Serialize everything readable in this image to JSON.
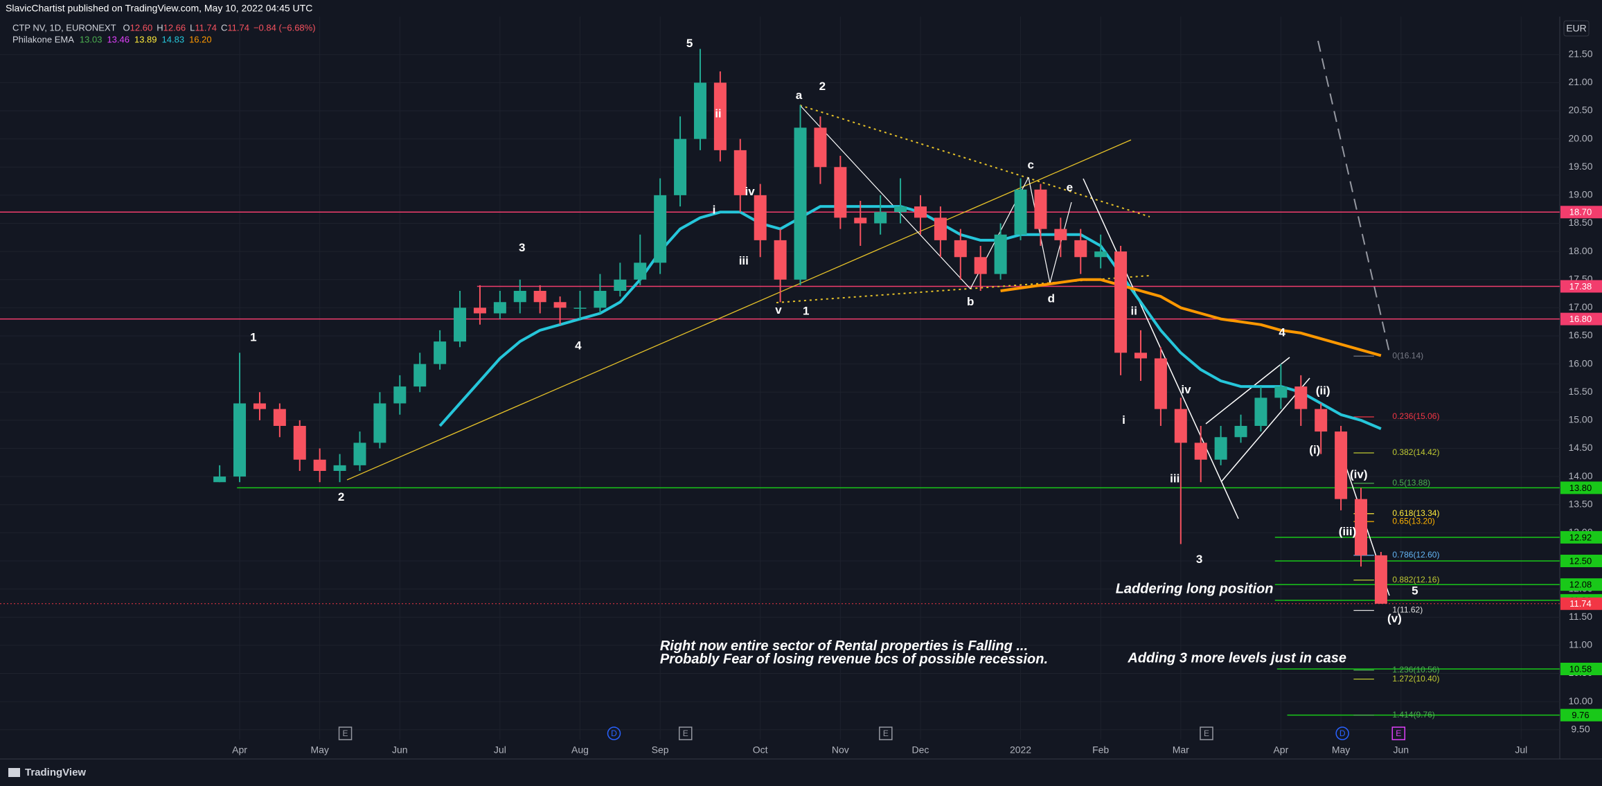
{
  "chart_data": {
    "type": "candlestick",
    "publisher": "SlavicChartist published on TradingView.com, May 10, 2022 04:45 UTC",
    "symbol": "CTP NV, 1D, EURONEXT",
    "ohlc": [
      {
        "key": "O",
        "label": "12.60"
      },
      {
        "key": "H",
        "label": "12.66"
      },
      {
        "key": "L",
        "label": "11.74"
      },
      {
        "key": "C",
        "label": "11.74"
      }
    ],
    "change": "−0.84 (−6.68%)",
    "indicator": "Philakone EMA",
    "indicator_values": [
      {
        "label": "13.03",
        "color": "#4caf50"
      },
      {
        "label": "13.46",
        "color": "#e040fb"
      },
      {
        "label": "13.89",
        "color": "#ffeb3b"
      },
      {
        "label": "14.83",
        "color": "#26c6da"
      },
      {
        "label": "16.20",
        "color": "#ff9800"
      }
    ],
    "currency": "EUR",
    "footer": "TradingView",
    "up_color": "#22ab94",
    "down_color": "#f7525f",
    "categories": [
      null,
      "Apr",
      null,
      null,
      null,
      "May",
      null,
      null,
      null,
      "Jun",
      null,
      null,
      null,
      null,
      "Jul",
      null,
      null,
      null,
      "Aug",
      null,
      null,
      null,
      "Sep",
      null,
      null,
      null,
      null,
      "Oct",
      null,
      null,
      null,
      "Nov",
      null,
      null,
      null,
      "Dec",
      null,
      null,
      null,
      null,
      "2022",
      null,
      null,
      null,
      "Feb",
      null,
      null,
      null,
      "Mar",
      null,
      null,
      null,
      null,
      "Apr",
      null,
      null,
      "May",
      null,
      null,
      "Jun",
      null,
      null,
      null,
      null,
      null,
      "Jul",
      null
    ],
    "open": [
      13.9,
      14.0,
      15.3,
      15.2,
      14.9,
      14.3,
      14.1,
      14.2,
      14.6,
      15.3,
      15.6,
      16.0,
      16.4,
      17.0,
      16.9,
      17.1,
      17.3,
      17.1,
      17.0,
      17.0,
      17.3,
      17.5,
      17.8,
      19.0,
      20.0,
      21.0,
      19.8,
      19.0,
      18.2,
      17.5,
      20.2,
      19.5,
      18.6,
      18.5,
      18.7,
      18.8,
      18.6,
      18.2,
      17.9,
      17.6,
      18.3,
      19.1,
      18.4,
      18.2,
      17.9,
      18.0,
      16.2,
      16.1,
      15.2,
      14.6,
      14.3,
      14.7,
      14.9,
      15.4,
      15.6,
      15.2,
      14.8,
      13.6,
      12.6,
      null,
      null,
      null,
      null,
      null,
      null,
      null,
      null
    ],
    "high": [
      14.2,
      16.2,
      15.5,
      15.3,
      15.0,
      14.5,
      14.4,
      14.8,
      15.5,
      15.8,
      16.2,
      16.6,
      17.3,
      17.4,
      17.3,
      17.5,
      17.4,
      17.2,
      17.3,
      17.6,
      17.8,
      18.3,
      19.3,
      20.4,
      21.6,
      21.2,
      20.0,
      19.2,
      18.4,
      20.6,
      20.4,
      19.7,
      18.9,
      19.0,
      19.3,
      19.0,
      18.8,
      18.4,
      18.1,
      18.5,
      19.3,
      19.2,
      18.6,
      18.4,
      18.3,
      18.1,
      16.6,
      16.3,
      15.4,
      14.9,
      14.9,
      15.1,
      15.6,
      16.0,
      15.8,
      15.3,
      14.9,
      13.8,
      12.66,
      null,
      null,
      null,
      null,
      null,
      null,
      null,
      null
    ],
    "low": [
      13.9,
      13.9,
      15.0,
      14.7,
      14.1,
      13.9,
      13.9,
      14.1,
      14.5,
      15.1,
      15.5,
      15.9,
      16.3,
      16.7,
      16.8,
      16.9,
      16.9,
      16.7,
      16.8,
      16.9,
      17.2,
      17.4,
      17.6,
      18.8,
      19.8,
      19.6,
      18.7,
      17.9,
      17.1,
      17.4,
      19.2,
      18.4,
      18.1,
      18.3,
      18.5,
      18.3,
      17.9,
      17.5,
      17.3,
      17.5,
      18.2,
      18.1,
      17.9,
      17.6,
      17.7,
      15.8,
      15.7,
      14.9,
      12.8,
      13.9,
      14.2,
      14.6,
      14.8,
      15.2,
      14.9,
      14.4,
      13.4,
      12.4,
      11.74,
      null,
      null,
      null,
      null,
      null,
      null,
      null,
      null
    ],
    "close": [
      14.0,
      15.3,
      15.2,
      14.9,
      14.3,
      14.1,
      14.2,
      14.6,
      15.3,
      15.6,
      16.0,
      16.4,
      17.0,
      16.9,
      17.1,
      17.3,
      17.1,
      17.0,
      17.0,
      17.3,
      17.5,
      17.8,
      19.0,
      20.0,
      21.0,
      19.8,
      19.0,
      18.2,
      17.5,
      20.2,
      19.5,
      18.6,
      18.5,
      18.7,
      18.8,
      18.6,
      18.2,
      17.9,
      17.6,
      18.3,
      19.1,
      18.4,
      18.2,
      17.9,
      18.0,
      16.2,
      16.1,
      15.2,
      14.6,
      14.3,
      14.7,
      14.9,
      15.4,
      15.6,
      15.2,
      14.8,
      13.6,
      12.6,
      11.74,
      null,
      null,
      null,
      null,
      null,
      null,
      null,
      null
    ],
    "series": [
      {
        "color": "#26c6da",
        "values": [
          null,
          null,
          null,
          null,
          null,
          null,
          null,
          null,
          null,
          null,
          null,
          14.9,
          15.3,
          15.7,
          16.1,
          16.4,
          16.6,
          16.7,
          16.8,
          16.9,
          17.1,
          17.5,
          18.0,
          18.4,
          18.6,
          18.7,
          18.7,
          18.5,
          18.4,
          18.6,
          18.8,
          18.8,
          18.8,
          18.8,
          18.8,
          18.7,
          18.5,
          18.3,
          18.2,
          18.2,
          18.3,
          18.3,
          18.3,
          18.3,
          18.1,
          17.6,
          17.1,
          16.6,
          16.2,
          15.9,
          15.7,
          15.6,
          15.6,
          15.6,
          15.5,
          15.3,
          15.1,
          15.0,
          14.85,
          null,
          null,
          null,
          null,
          null,
          null,
          null,
          null
        ]
      },
      {
        "color": "#ff9800",
        "values": [
          null,
          null,
          null,
          null,
          null,
          null,
          null,
          null,
          null,
          null,
          null,
          null,
          null,
          null,
          null,
          null,
          null,
          null,
          null,
          null,
          null,
          null,
          null,
          null,
          null,
          null,
          null,
          null,
          null,
          null,
          null,
          null,
          null,
          null,
          null,
          null,
          null,
          null,
          null,
          17.3,
          17.35,
          17.4,
          17.45,
          17.5,
          17.5,
          17.4,
          17.3,
          17.2,
          17.0,
          16.9,
          16.8,
          16.75,
          16.7,
          16.6,
          16.55,
          16.45,
          16.35,
          16.25,
          16.15,
          null,
          null,
          null,
          null,
          null,
          null,
          null,
          null
        ]
      }
    ],
    "ylim": [
      9.3,
      22.1
    ],
    "yticks": [
      {
        "value": 9.5,
        "label": "9.50"
      },
      {
        "value": 10,
        "label": "10.00"
      },
      {
        "value": 10.5,
        "label": "10.50"
      },
      {
        "value": 11,
        "label": "11.00"
      },
      {
        "value": 11.5,
        "label": "11.50"
      },
      {
        "value": 12,
        "label": "12.00"
      },
      {
        "value": 12.5,
        "label": "12.50"
      },
      {
        "value": 13,
        "label": "13.00"
      },
      {
        "value": 13.5,
        "label": "13.50"
      },
      {
        "value": 14,
        "label": "14.00"
      },
      {
        "value": 14.5,
        "label": "14.50"
      },
      {
        "value": 15,
        "label": "15.00"
      },
      {
        "value": 15.5,
        "label": "15.50"
      },
      {
        "value": 16,
        "label": "16.00"
      },
      {
        "value": 16.5,
        "label": "16.50"
      },
      {
        "value": 17,
        "label": "17.00"
      },
      {
        "value": 17.5,
        "label": "17.50"
      },
      {
        "value": 18,
        "label": "18.00"
      },
      {
        "value": 18.5,
        "label": "18.50"
      },
      {
        "value": 19,
        "label": "19.00"
      },
      {
        "value": 19.5,
        "label": "19.50"
      },
      {
        "value": 20,
        "label": "20.00"
      },
      {
        "value": 20.5,
        "label": "20.50"
      },
      {
        "value": 21,
        "label": "21.00"
      },
      {
        "value": 21.5,
        "label": "21.50"
      }
    ],
    "grid": true,
    "levels": [
      {
        "value": 18.7,
        "label": "18.70",
        "color": "#f23d6d"
      },
      {
        "value": 17.38,
        "label": "17.38",
        "color": "#f23d6d"
      },
      {
        "value": 16.8,
        "label": "16.80",
        "color": "#f23d6d"
      },
      {
        "value": 13.8,
        "label": "13.80",
        "color": "#19c819"
      },
      {
        "value": 12.92,
        "label": "12.92",
        "color": "#19c819"
      },
      {
        "value": 12.5,
        "label": "12.50",
        "color": "#19c819"
      },
      {
        "value": 12.08,
        "label": "12.08",
        "color": "#19c819"
      },
      {
        "value": 11.8,
        "label": "11.80",
        "color": "#19c819"
      },
      {
        "value": 11.74,
        "label": "11.74",
        "color": "#f23645"
      },
      {
        "value": 10.58,
        "label": "10.58",
        "color": "#19c819"
      },
      {
        "value": 9.76,
        "label": "9.76",
        "color": "#19c819"
      }
    ],
    "fib_levels": [
      {
        "value": 16.14,
        "label": "0(16.14)",
        "color": "#787b86"
      },
      {
        "value": 15.06,
        "label": "0.236(15.06)",
        "color": "#f23645"
      },
      {
        "value": 14.42,
        "label": "0.382(14.42)",
        "color": "#c0ca33"
      },
      {
        "value": 13.88,
        "label": "0.5(13.88)",
        "color": "#4caf50"
      },
      {
        "value": 13.34,
        "label": "0.618(13.34)",
        "color": "#ffeb3b"
      },
      {
        "value": 13.2,
        "label": "0.65(13.20)",
        "color": "#ffb300"
      },
      {
        "value": 12.6,
        "label": "0.786(12.60)",
        "color": "#64b5f6"
      },
      {
        "value": 12.16,
        "label": "0.882(12.16)",
        "color": "#c0ca33"
      },
      {
        "value": 11.62,
        "label": "1(11.62)",
        "color": "#e0e0e0"
      },
      {
        "value": 10.56,
        "label": "1.236(10.56)",
        "color": "#4caf50"
      },
      {
        "value": 10.4,
        "label": "1.272(10.40)",
        "color": "#c0ca33"
      },
      {
        "value": 9.76,
        "label": "1.414(9.76)",
        "color": "#4caf50"
      }
    ],
    "annotations": [
      "1",
      "2",
      "3",
      "4",
      "5",
      "ii",
      "i",
      "iv",
      "iii",
      "v",
      "1",
      "a",
      "2",
      "b",
      "c",
      "d",
      "e",
      "ii",
      "iv",
      "i",
      "iii",
      "3",
      "4",
      "(ii)",
      "(i)",
      "(iv)",
      "(iii)",
      "5",
      "(v)"
    ],
    "notes": [
      "Laddering long position",
      "Right now entire sector of Rental properties is Falling ...",
      "Probably Fear of losing revenue bcs of possible recession.",
      "Adding 3 more levels just in case"
    ],
    "events": [
      "E",
      "D",
      "E",
      "E",
      "E",
      "D",
      "E"
    ]
  }
}
